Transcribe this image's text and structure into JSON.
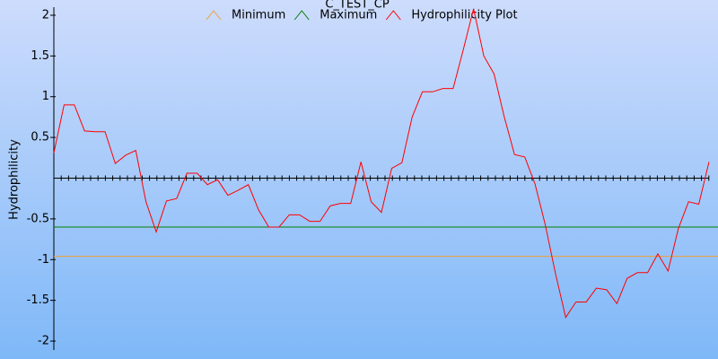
{
  "chart_data": {
    "type": "line",
    "title": "C_TEST_CP",
    "y_label": "Hydrophilicity",
    "categories": [
      null,
      null,
      null,
      null,
      null,
      null,
      null,
      null,
      null,
      null,
      null,
      null,
      null,
      null,
      null,
      null,
      null,
      null,
      null,
      null,
      null,
      null,
      null,
      null,
      null,
      null,
      null,
      null,
      null,
      null,
      null,
      null,
      null,
      null,
      null,
      null,
      null,
      null,
      null,
      null,
      null,
      null,
      null,
      null,
      null,
      null,
      null,
      null,
      null,
      null,
      null,
      null,
      null,
      null,
      null,
      null,
      null,
      null,
      null,
      null,
      null,
      null,
      null,
      null,
      null
    ],
    "series": [
      {
        "name": "Minimum",
        "color": "#f0a030",
        "value": -0.96
      },
      {
        "name": "Maximum",
        "color": "#008000",
        "value": -0.6
      },
      {
        "name": "Hydrophilicity Plot",
        "color": "#ff0000",
        "values": [
          0.31,
          0.9,
          0.9,
          0.58,
          0.57,
          0.57,
          0.18,
          0.28,
          0.34,
          -0.29,
          -0.66,
          -0.28,
          -0.25,
          0.06,
          0.06,
          -0.08,
          -0.02,
          -0.21,
          -0.15,
          -0.08,
          -0.39,
          -0.6,
          -0.6,
          -0.45,
          -0.45,
          -0.53,
          -0.53,
          -0.34,
          -0.31,
          -0.31,
          0.2,
          -0.29,
          -0.42,
          0.12,
          0.19,
          0.75,
          1.06,
          1.06,
          1.1,
          1.1,
          1.58,
          2.08,
          1.5,
          1.28,
          0.75,
          0.29,
          0.26,
          -0.07,
          -0.57,
          -1.17,
          -1.71,
          -1.52,
          -1.52,
          -1.35,
          -1.37,
          -1.54,
          -1.23,
          -1.16,
          -1.16,
          -0.93,
          -1.14,
          -0.62,
          -0.29,
          -0.32,
          0.2
        ]
      }
    ],
    "ylim": [
      -2.1,
      2.1
    ],
    "yticks": [
      -2,
      -1.5,
      -1,
      -0.5,
      0.5,
      1,
      1.5,
      2
    ],
    "legend": "top"
  }
}
